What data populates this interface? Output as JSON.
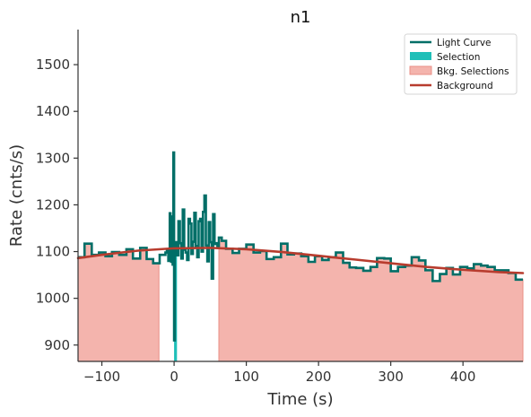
{
  "chart_data": {
    "type": "line",
    "title": "n1",
    "xlabel": "Time (s)",
    "ylabel": "Rate (cnts/s)",
    "xlim": [
      -133,
      483
    ],
    "ylim": [
      865,
      1575
    ],
    "x_ticks": [
      -100,
      0,
      100,
      200,
      300,
      400
    ],
    "y_ticks": [
      900,
      1000,
      1100,
      1200,
      1300,
      1400,
      1500
    ],
    "x_tick_labels": [
      "−100",
      "0",
      "100",
      "200",
      "300",
      "400"
    ],
    "y_tick_labels": [
      "900",
      "1000",
      "1100",
      "1200",
      "1300",
      "1400",
      "1500"
    ],
    "legend_position": "top-right",
    "legend": [
      {
        "label": "Light Curve",
        "kind": "line",
        "color": "#006e67"
      },
      {
        "label": "Selection",
        "kind": "patch",
        "color": "#1fbfb8"
      },
      {
        "label": "Bkg. Selections",
        "kind": "patch",
        "color": "#f4b4ad"
      },
      {
        "label": "Background",
        "kind": "line",
        "color": "#b83c2e"
      }
    ],
    "colors": {
      "light_curve": "#006e67",
      "selection": "#1fbfb8",
      "bkg_fill": "#f4b4ad",
      "bkg_edge": "#ea8f86",
      "background": "#b83c2e"
    },
    "selection_range": [
      0,
      4
    ],
    "bkg_selections": [
      [
        -133,
        -21
      ],
      [
        62,
        483
      ]
    ],
    "light_curve": {
      "step": "post",
      "x": [
        -133,
        -124,
        -114,
        -104,
        -95,
        -86,
        -76,
        -66,
        -57,
        -47,
        -38,
        -29,
        -20,
        -12,
        -10,
        -8,
        -6,
        -5,
        -4,
        -3,
        -2,
        -1,
        0,
        1,
        2,
        4,
        6,
        8,
        10,
        12,
        14,
        16,
        18,
        20,
        22,
        24,
        26,
        28,
        30,
        32,
        34,
        36,
        38,
        40,
        42,
        44,
        46,
        48,
        50,
        52,
        54,
        56,
        58,
        60,
        62,
        66,
        72,
        81,
        90,
        100,
        110,
        119,
        128,
        138,
        148,
        157,
        166,
        176,
        186,
        195,
        205,
        214,
        224,
        234,
        243,
        252,
        262,
        272,
        281,
        291,
        300,
        310,
        320,
        329,
        339,
        348,
        358,
        368,
        377,
        386,
        396,
        406,
        415,
        425,
        434,
        444,
        454,
        463,
        473,
        483
      ],
      "y": [
        1088,
        1117,
        1093,
        1098,
        1090,
        1099,
        1093,
        1105,
        1085,
        1108,
        1084,
        1075,
        1093,
        1098,
        1105,
        1080,
        1182,
        1100,
        1078,
        1175,
        1072,
        1312,
        910,
        1096,
        1120,
        1092,
        1165,
        1118,
        1085,
        1190,
        1104,
        1098,
        1082,
        1170,
        1160,
        1095,
        1121,
        1183,
        1112,
        1088,
        1165,
        1170,
        1100,
        1185,
        1220,
        1113,
        1079,
        1163,
        1120,
        1042,
        1180,
        1116,
        1118,
        1108,
        1130,
        1123,
        1106,
        1097,
        1106,
        1115,
        1098,
        1101,
        1084,
        1088,
        1117,
        1094,
        1096,
        1090,
        1078,
        1090,
        1082,
        1088,
        1098,
        1076,
        1066,
        1065,
        1059,
        1067,
        1086,
        1085,
        1058,
        1067,
        1070,
        1088,
        1081,
        1060,
        1037,
        1052,
        1065,
        1051,
        1067,
        1064,
        1073,
        1070,
        1067,
        1060,
        1060,
        1054,
        1040,
        1040
      ]
    },
    "background": {
      "x": [
        -133,
        -100,
        -50,
        0,
        50,
        100,
        150,
        200,
        250,
        300,
        350,
        400,
        450,
        483
      ],
      "y": [
        1086,
        1093,
        1102,
        1107,
        1108,
        1105,
        1099,
        1091,
        1083,
        1075,
        1067,
        1061,
        1056,
        1054
      ]
    }
  }
}
